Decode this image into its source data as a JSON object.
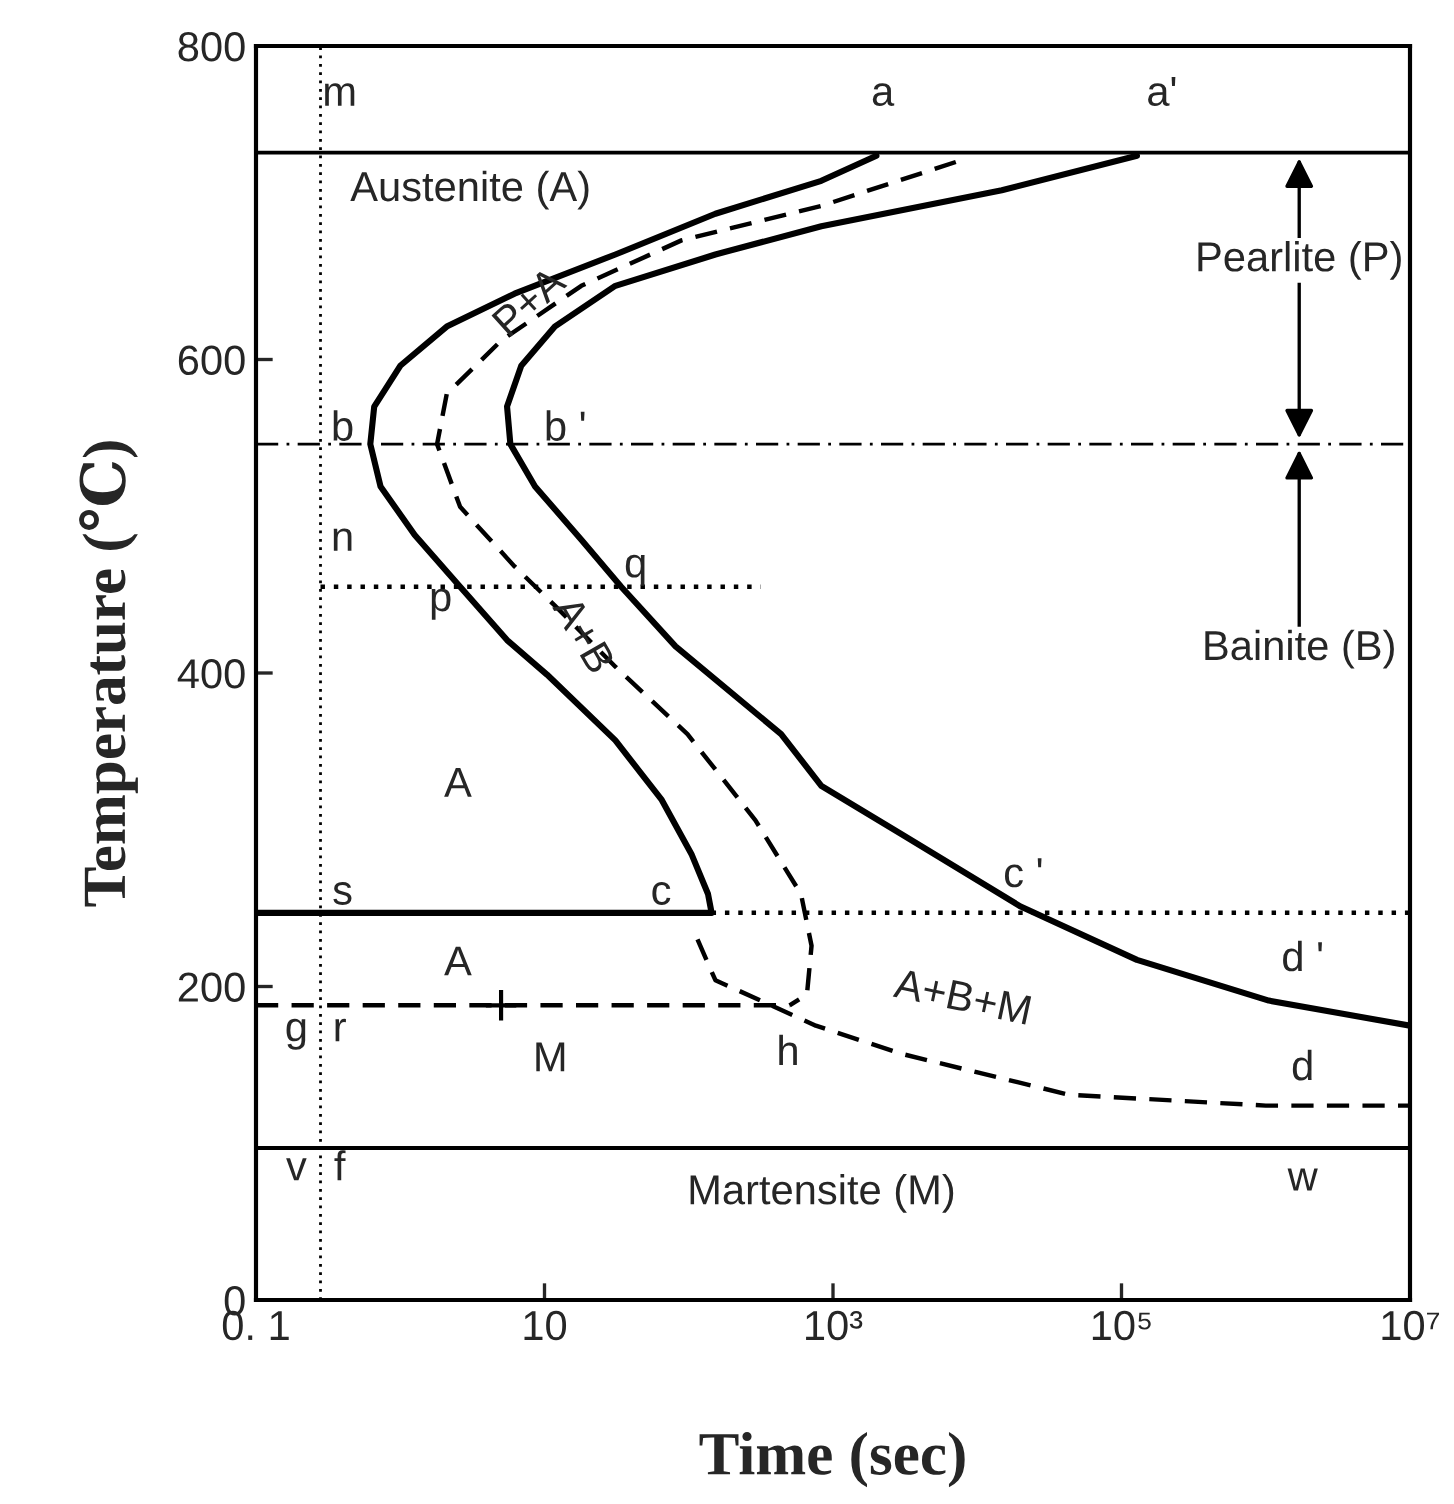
{
  "chart_data": {
    "type": "line",
    "xlabel": "Time (sec)",
    "ylabel": "Temperature (℃)",
    "log": "x",
    "grid": false,
    "legend": false,
    "xlim": [
      0.1,
      10000000
    ],
    "ylim": [
      0,
      800
    ],
    "xticks": [
      {
        "value": 0.1,
        "label": "0. 1"
      },
      10,
      {
        "value": 1000,
        "label": "10³"
      },
      {
        "value": 100000,
        "label": "10⁵"
      },
      {
        "value": 10000000,
        "label": "10⁷"
      }
    ],
    "yticks": [
      0,
      200,
      400,
      600,
      800
    ],
    "series": [
      {
        "color": "#000000",
        "line_style": "solid",
        "marker": "none",
        "x": [
          2000,
          830,
          153,
          31,
          6.2,
          2.1,
          1.0,
          0.66,
          0.62,
          0.73,
          1.26,
          2.6,
          5.5,
          10.4,
          31,
          65,
          105,
          136,
          144
        ],
        "values": [
          730,
          714,
          693,
          667,
          642,
          621,
          596,
          570,
          546,
          519,
          488,
          455,
          421,
          399,
          357,
          319,
          284,
          259,
          247
        ]
      },
      {
        "color": "#000000",
        "line_style": "dashed",
        "marker": "none",
        "x": [
          7100,
          830,
          89,
          18,
          5.0,
          2.1,
          1.8,
          2.6,
          6.2,
          11.8,
          31,
          98,
          290,
          600,
          710,
          660,
          500
        ],
        "values": [
          726,
          698,
          676,
          647,
          612,
          578,
          546,
          506,
          468,
          443,
          404,
          361,
          306,
          259,
          226,
          195,
          188
        ]
      },
      {
        "color": "#000000",
        "line_style": "solid",
        "marker": "none",
        "x": [
          128000,
          14800,
          830,
          153,
          31,
          11.8,
          6.9,
          5.5,
          5.8,
          8.6,
          18,
          34,
          81,
          437,
          830,
          3000,
          20000,
          128000,
          1050000,
          10000000
        ],
        "values": [
          730,
          708,
          685,
          667,
          647,
          621,
          596,
          570,
          546,
          519,
          485,
          455,
          417,
          361,
          328,
          297,
          251,
          217,
          191,
          175
        ]
      },
      {
        "color": "#000000",
        "line_style": "dashed",
        "marker": "none",
        "x": [
          115,
          153,
          316,
          760,
          3000,
          43000,
          1000000,
          10000000
        ],
        "values": [
          230,
          204,
          191,
          175,
          157,
          131,
          124,
          124
        ]
      },
      {
        "color": "#000000",
        "line_style": "solid",
        "marker": "none",
        "x": [
          0.1,
          144
        ],
        "values": [
          247,
          247
        ]
      },
      {
        "color": "#000000",
        "line_style": "dotted",
        "marker": "none",
        "x": [
          144,
          10000000
        ],
        "values": [
          247,
          247
        ]
      },
      {
        "color": "#000000",
        "line_style": "dashed",
        "marker": "none",
        "x": [
          0.1,
          500
        ],
        "values": [
          188,
          188
        ]
      },
      {
        "color": "#000000",
        "line_style": "dotted",
        "marker": "none",
        "x": [
          0.28,
          316
        ],
        "values": [
          455,
          455
        ]
      },
      {
        "type": "scatter",
        "color": "#000000",
        "marker": "cross",
        "x": [
          5
        ],
        "values": [
          188
        ]
      }
    ],
    "ref_lines": [
      {
        "axis": "y",
        "value": 732,
        "line_style": "solid",
        "color": "#000000"
      },
      {
        "axis": "y",
        "value": 546,
        "line_style": "dashdot",
        "color": "#000000"
      },
      {
        "axis": "y",
        "value": 97,
        "line_style": "solid",
        "color": "#000000"
      },
      {
        "axis": "x",
        "value": 0.28,
        "line_style": "dotted",
        "color": "#000000"
      }
    ],
    "annotations": [
      "m",
      "a",
      "a'",
      "Austenite (A)",
      "P+A",
      "b",
      "b '",
      "n",
      "q",
      "p",
      "A+B",
      "A",
      "s",
      "c",
      "c '",
      "A",
      "d '",
      "A+B+M",
      "g",
      "r",
      "M",
      "h",
      "d",
      "v",
      "f",
      "w",
      "Martensite (M)",
      "Pearlite (P)",
      "Bainite (B)"
    ]
  }
}
